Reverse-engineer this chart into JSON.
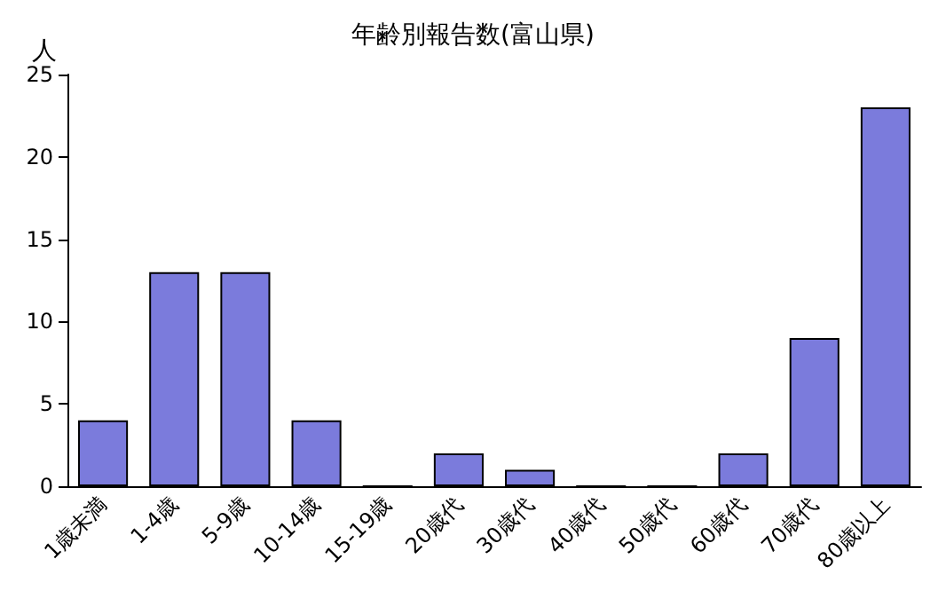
{
  "chart_data": {
    "type": "bar",
    "title": "年齢別報告数(富山県)",
    "ylabel": "人",
    "categories": [
      "1歳未満",
      "1-4歳",
      "5-9歳",
      "10-14歳",
      "15-19歳",
      "20歳代",
      "30歳代",
      "40歳代",
      "50歳代",
      "60歳代",
      "70歳代",
      "80歳以上"
    ],
    "values": [
      4,
      13,
      13,
      4,
      0,
      2,
      1,
      0,
      0,
      2,
      9,
      23
    ],
    "color": "#7b7bdc",
    "ylim": [
      0,
      25
    ],
    "yticks": [
      0,
      5,
      10,
      15,
      20,
      25
    ]
  }
}
